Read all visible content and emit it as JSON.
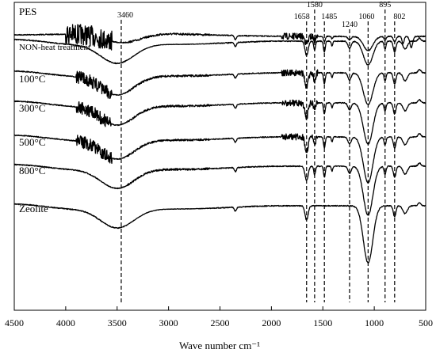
{
  "chart_data": {
    "type": "line",
    "title": "",
    "xlabel": "Wave number cm⁻¹",
    "ylabel": "",
    "xlim": [
      4500,
      500
    ],
    "x_reversed": true,
    "x_ticks": [
      4500,
      4000,
      3500,
      3000,
      2500,
      2000,
      1500,
      1000,
      500
    ],
    "y_ticks_shown": false,
    "series": [
      {
        "name": "PES",
        "peaks": [
          3460,
          1658,
          1580,
          1485,
          1240,
          1060,
          895,
          802
        ],
        "noisy_region": [
          4000,
          3500
        ]
      },
      {
        "name": "NON-heat treatment",
        "peaks": [
          3460,
          1658,
          1580,
          1485,
          1240,
          1060,
          895,
          802
        ]
      },
      {
        "name": "100°C",
        "peaks": [
          3460,
          1658,
          1580,
          1485,
          1240,
          1060,
          895,
          802
        ]
      },
      {
        "name": "300°C",
        "peaks": [
          3460,
          1658,
          1580,
          1485,
          1240,
          1060,
          895,
          802
        ]
      },
      {
        "name": "500°C",
        "peaks": [
          3460,
          1658,
          1580,
          1485,
          1240,
          1060,
          895,
          802
        ]
      },
      {
        "name": "800°C",
        "peaks": [
          3460,
          1658,
          1580,
          1485,
          1240,
          1060,
          895,
          802
        ]
      },
      {
        "name": "Zeolite",
        "peaks": [
          3460,
          1658,
          1060,
          802
        ]
      }
    ],
    "annotations": [
      {
        "label": "3460",
        "x": 3460
      },
      {
        "label": "1658",
        "x": 1658
      },
      {
        "label": "1580",
        "x": 1580
      },
      {
        "label": "1485",
        "x": 1485
      },
      {
        "label": "1240",
        "x": 1240
      },
      {
        "label": "1060",
        "x": 1060
      },
      {
        "label": "895",
        "x": 895
      },
      {
        "label": "802",
        "x": 802
      }
    ],
    "grid": false,
    "legend": "inline labels on left"
  }
}
